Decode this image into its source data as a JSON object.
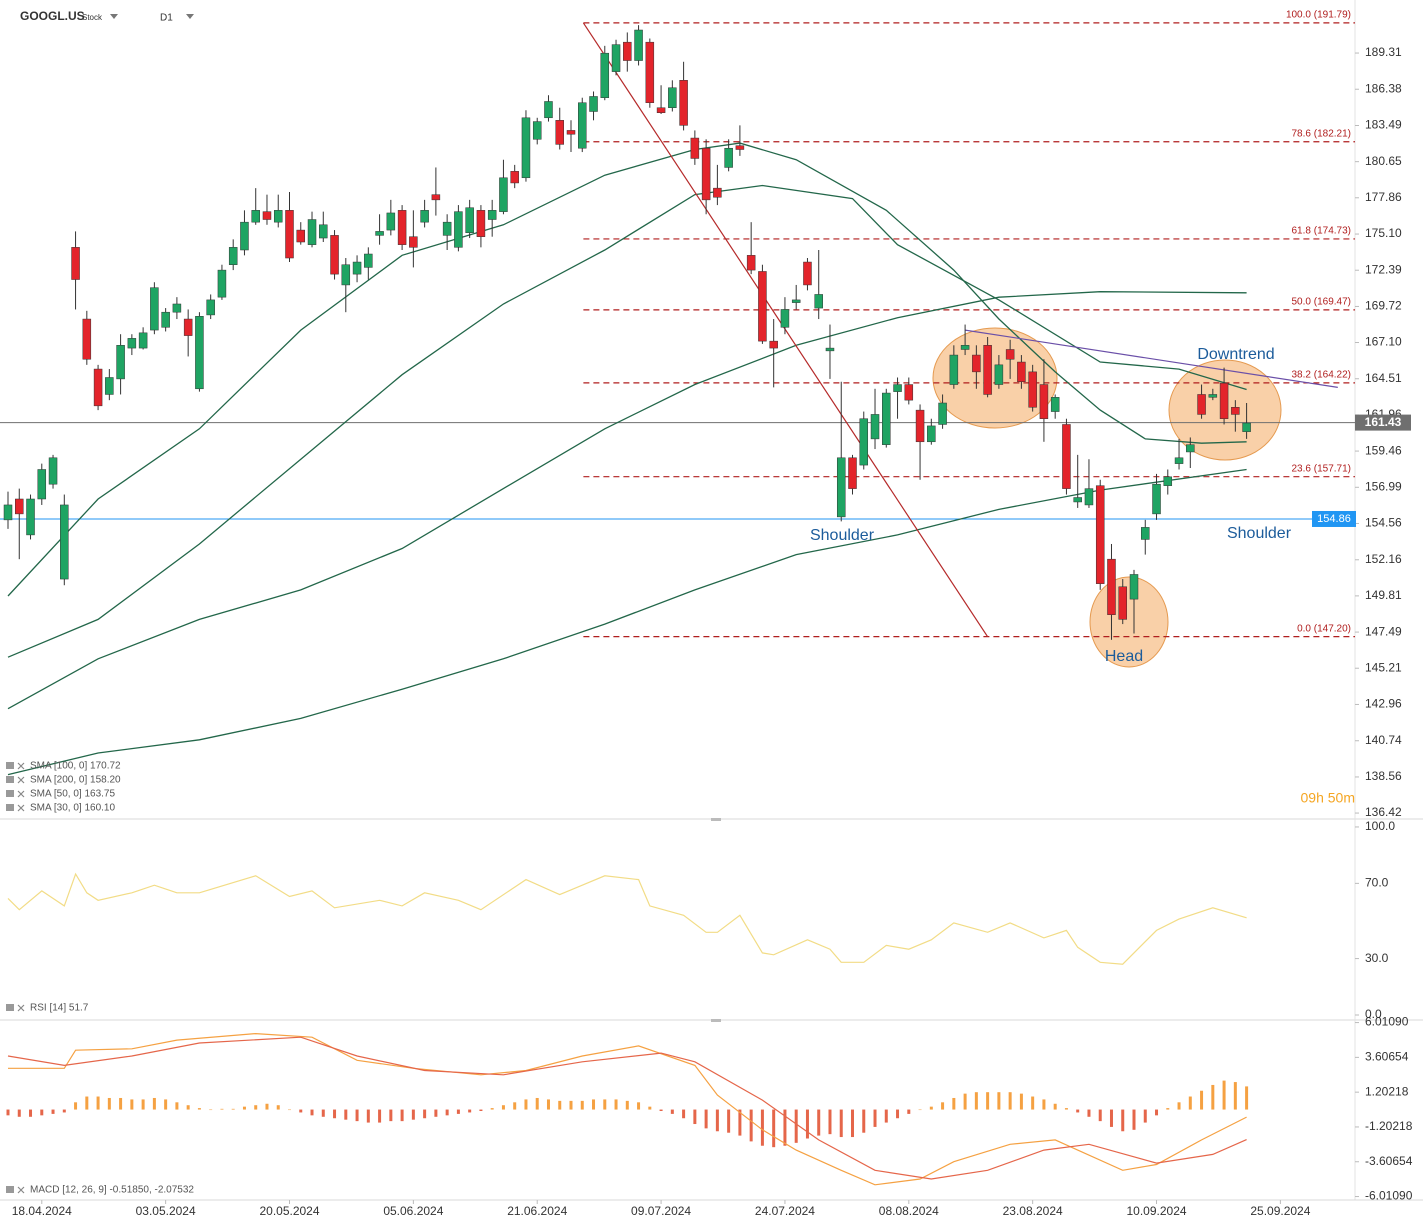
{
  "header": {
    "symbol": "GOOGL.US",
    "instrument_type": "Stock",
    "timeframe": "D1"
  },
  "countdown": "09h 50m",
  "chart_data": [
    {
      "type": "candlestick",
      "log_scale": true,
      "ylim": [
        136.13,
        193.69
      ],
      "yticks": [
        189.31,
        186.38,
        183.49,
        180.65,
        177.86,
        {
          "value": 175.1,
          "label": "175.10"
        },
        172.39,
        169.72,
        {
          "value": 167.1,
          "label": "167.10"
        },
        164.51,
        161.96,
        159.46,
        156.99,
        154.56,
        152.16,
        149.81,
        147.49,
        145.21,
        142.96,
        140.74,
        138.56,
        136.42
      ],
      "xticks": [
        {
          "value": 3,
          "label": "18.04.2024"
        },
        {
          "value": 14,
          "label": "03.05.2024"
        },
        {
          "value": 25,
          "label": "20.05.2024"
        },
        {
          "value": 36,
          "label": "05.06.2024"
        },
        {
          "value": 47,
          "label": "21.06.2024"
        },
        {
          "value": 58,
          "label": "09.07.2024"
        },
        {
          "value": 69,
          "label": "24.07.2024"
        },
        {
          "value": 80,
          "label": "08.08.2024"
        },
        {
          "value": 91,
          "label": "23.08.2024"
        },
        {
          "value": 102,
          "label": "10.09.2024"
        },
        {
          "value": 113,
          "label": "25.09.2024"
        }
      ],
      "up_color": "#1fa463",
      "down_color": "#e3242b",
      "candles": {
        "open": [
          154.8,
          156.2,
          153.8,
          156.2,
          157.2,
          150.9,
          174.1,
          168.8,
          165.2,
          163.4,
          164.5,
          166.7,
          166.7,
          168.0,
          168.2,
          169.3,
          168.8,
          163.8,
          169.1,
          170.4,
          172.8,
          173.9,
          176.0,
          176.8,
          176.0,
          176.9,
          175.4,
          174.3,
          174.8,
          175.0,
          171.3,
          172.1,
          172.6,
          175.0,
          175.4,
          176.9,
          174.9,
          176.0,
          178.1,
          175.0,
          174.1,
          175.2,
          176.9,
          176.2,
          176.8,
          179.9,
          179.4,
          182.4,
          184.1,
          183.9,
          183.1,
          181.7,
          184.6,
          185.7,
          187.8,
          190.2,
          188.7,
          190.2,
          184.9,
          184.9,
          187.1,
          182.5,
          181.7,
          178.6,
          180.2,
          181.9,
          173.5,
          172.3,
          167.2,
          168.2,
          170.0,
          173.0,
          169.6,
          166.5,
          155.0,
          159.0,
          158.5,
          160.3,
          159.9,
          163.6,
          164.1,
          162.3,
          160.1,
          161.3,
          164.1,
          166.6,
          166.2,
          166.9,
          164.1,
          166.6,
          165.7,
          165.0,
          164.1,
          162.2,
          161.3,
          156.0,
          155.8,
          157.1,
          152.2,
          150.4,
          149.6,
          153.5,
          155.2,
          157.1,
          158.6,
          159.4,
          163.4,
          163.2,
          164.2,
          162.5,
          160.8
        ],
        "high": [
          156.7,
          156.9,
          156.5,
          158.6,
          159.2,
          156.5,
          175.3,
          169.4,
          165.5,
          165.2,
          167.7,
          167.7,
          168.2,
          171.5,
          169.6,
          170.4,
          169.5,
          169.3,
          170.6,
          172.8,
          174.7,
          176.9,
          178.6,
          178.1,
          178.1,
          178.3,
          176.0,
          176.8,
          176.8,
          175.4,
          173.3,
          173.5,
          174.1,
          176.6,
          177.7,
          177.3,
          176.9,
          177.7,
          180.2,
          176.6,
          177.3,
          177.7,
          177.3,
          177.7,
          180.8,
          180.4,
          184.7,
          184.1,
          185.9,
          184.9,
          183.9,
          185.7,
          186.2,
          189.9,
          190.4,
          191.0,
          191.6,
          190.5,
          186.7,
          187.1,
          188.6,
          183.1,
          182.4,
          180.4,
          182.4,
          183.5,
          176.0,
          172.8,
          168.8,
          170.4,
          171.3,
          173.3,
          173.9,
          168.4,
          164.3,
          159.2,
          162.2,
          163.8,
          163.8,
          164.6,
          164.6,
          162.7,
          161.7,
          163.4,
          166.9,
          168.4,
          166.9,
          167.5,
          166.2,
          167.3,
          166.2,
          165.5,
          165.9,
          163.4,
          161.7,
          159.2,
          158.9,
          157.5,
          153.2,
          150.9,
          151.5,
          154.8,
          157.9,
          158.2,
          160.3,
          160.4,
          164.1,
          163.8,
          165.3,
          163.0,
          162.8
        ],
        "low": [
          154.2,
          152.2,
          153.5,
          155.8,
          156.9,
          150.5,
          169.5,
          165.5,
          162.3,
          163.0,
          163.4,
          166.2,
          166.6,
          167.7,
          167.9,
          168.8,
          166.1,
          163.6,
          168.8,
          170.2,
          172.4,
          173.5,
          175.8,
          175.8,
          175.6,
          173.0,
          174.3,
          174.1,
          174.5,
          171.7,
          169.3,
          171.5,
          171.7,
          174.3,
          175.0,
          173.9,
          172.6,
          175.6,
          176.5,
          173.9,
          173.8,
          174.8,
          174.1,
          174.9,
          176.6,
          178.6,
          179.1,
          182.0,
          183.8,
          181.6,
          181.4,
          181.4,
          183.9,
          185.5,
          187.5,
          187.8,
          188.3,
          184.9,
          184.4,
          184.6,
          183.1,
          180.4,
          176.6,
          177.3,
          179.9,
          181.1,
          172.1,
          167.0,
          163.9,
          167.7,
          169.5,
          170.9,
          168.8,
          164.5,
          154.7,
          156.5,
          158.2,
          159.6,
          159.7,
          161.7,
          162.7,
          157.5,
          159.9,
          161.0,
          163.8,
          166.2,
          163.8,
          163.2,
          163.8,
          164.5,
          163.8,
          162.2,
          160.1,
          161.7,
          156.5,
          155.6,
          155.6,
          150.2,
          147.0,
          148.0,
          147.4,
          152.5,
          154.8,
          156.5,
          158.2,
          158.3,
          161.7,
          163.0,
          161.3,
          160.8,
          160.3
        ],
        "close": [
          155.8,
          155.2,
          156.2,
          158.2,
          159.0,
          155.8,
          171.7,
          165.9,
          162.6,
          164.6,
          166.9,
          167.4,
          167.8,
          171.1,
          169.3,
          169.9,
          167.6,
          169.0,
          170.2,
          172.4,
          174.1,
          176.0,
          176.9,
          176.2,
          176.9,
          173.3,
          174.5,
          176.2,
          175.8,
          172.1,
          172.8,
          173.0,
          173.6,
          175.3,
          176.7,
          174.3,
          174.1,
          176.9,
          177.7,
          176.0,
          176.8,
          177.1,
          174.9,
          176.9,
          179.4,
          179.0,
          184.1,
          183.8,
          185.4,
          182.0,
          182.8,
          185.3,
          185.8,
          189.3,
          190.0,
          188.7,
          191.2,
          185.3,
          184.5,
          186.5,
          183.5,
          180.9,
          177.7,
          177.9,
          181.7,
          181.6,
          172.4,
          167.2,
          166.7,
          169.5,
          170.2,
          171.3,
          170.6,
          166.7,
          159.0,
          156.9,
          161.7,
          162.0,
          163.5,
          164.1,
          163.0,
          160.1,
          161.2,
          162.8,
          166.2,
          166.9,
          165.0,
          163.4,
          165.5,
          165.9,
          164.3,
          162.5,
          161.7,
          163.2,
          156.9,
          156.3,
          156.9,
          150.6,
          148.6,
          148.3,
          151.2,
          154.3,
          157.2,
          157.7,
          159.0,
          159.9,
          162.0,
          163.4,
          161.7,
          162.0,
          161.4
        ]
      },
      "series": [
        {
          "name": "SMA [100, 0] 170.72",
          "color": "#23674a",
          "x": [
            0,
            8,
            17,
            26,
            35,
            44,
            53,
            61,
            70,
            79,
            88,
            97,
            110
          ],
          "values": [
            142.7,
            145.8,
            148.3,
            150.2,
            152.9,
            156.9,
            161.0,
            164.1,
            166.9,
            168.9,
            170.4,
            170.8,
            170.72
          ]
        },
        {
          "name": "SMA [200, 0] 158.20",
          "color": "#23674a",
          "x": [
            0,
            8,
            17,
            26,
            35,
            44,
            53,
            61,
            70,
            79,
            88,
            97,
            110
          ],
          "values": [
            138.7,
            140.0,
            140.8,
            142.1,
            143.9,
            145.8,
            148.0,
            150.2,
            152.5,
            153.8,
            155.5,
            156.8,
            158.2
          ]
        },
        {
          "name": "SMA [50, 0] 163.75",
          "color": "#23674a",
          "x": [
            0,
            8,
            17,
            26,
            35,
            44,
            53,
            61,
            67,
            75,
            79,
            88,
            97,
            104,
            110
          ],
          "values": [
            145.9,
            148.3,
            153.2,
            158.9,
            164.8,
            169.9,
            173.9,
            178.1,
            178.8,
            177.8,
            174.3,
            170.2,
            165.7,
            165.2,
            163.75
          ]
        },
        {
          "name": "SMA [30, 0] 160.10",
          "color": "#23674a",
          "x": [
            0,
            8,
            17,
            26,
            35,
            44,
            53,
            61,
            65,
            70,
            78,
            84,
            88,
            93,
            97,
            101,
            106,
            110
          ],
          "values": [
            149.8,
            156.2,
            161.0,
            168.0,
            173.5,
            175.8,
            179.6,
            181.6,
            182.1,
            180.8,
            176.9,
            172.4,
            168.8,
            165.0,
            162.3,
            160.3,
            160.0,
            160.1
          ]
        }
      ],
      "fibonacci": [
        {
          "label": "100.0 (191.79)",
          "value": 191.79
        },
        {
          "label": "78.6 (182.21)",
          "value": 182.21
        },
        {
          "label": "61.8 (174.73)",
          "value": 174.73
        },
        {
          "label": "50.0 (169.47)",
          "value": 169.47
        },
        {
          "label": "38.2 (164.22)",
          "value": 164.22
        },
        {
          "label": "23.6 (157.71)",
          "value": 157.71
        },
        {
          "label": "0.0 (147.20)",
          "value": 147.2
        }
      ],
      "fib_color": "#b01e1e",
      "trendlines": [
        {
          "color": "#b52a2a",
          "x": [
            51.1,
            87.0
          ],
          "values": [
            191.79,
            147.2
          ]
        },
        {
          "color": "#6a4fa8",
          "x": [
            85.0,
            118.1
          ],
          "values": [
            168.0,
            163.9
          ]
        }
      ],
      "price_lines": [
        {
          "value": 161.43,
          "color": "#6f6f6f"
        },
        {
          "value": 154.86,
          "color": "#2196f3"
        }
      ],
      "annotations": [
        "Shoulder",
        "Head",
        "Shoulder",
        "Downtrend"
      ]
    },
    {
      "type": "line",
      "ylim": [
        -1.6,
        103.7
      ],
      "yticks": [
        {
          "value": 100,
          "label": "100.0"
        },
        {
          "value": 70,
          "label": "70.0"
        },
        {
          "value": 30,
          "label": "30.0"
        },
        {
          "value": 0,
          "label": "0.0"
        }
      ],
      "series": [
        {
          "name": "RSI [14] 51.7",
          "color": "#f2dc86",
          "x": [
            0,
            1,
            3,
            5,
            6,
            7,
            8,
            11,
            13,
            15,
            17,
            22,
            25,
            27,
            29,
            33,
            35,
            37,
            40,
            42,
            46,
            49,
            53,
            56,
            57,
            60,
            62,
            63,
            65,
            67,
            68,
            71,
            73,
            74,
            76,
            78,
            80,
            82,
            84,
            87,
            89,
            92,
            94,
            95,
            97,
            99,
            102,
            104,
            107,
            110
          ],
          "values": [
            62,
            56,
            66,
            58,
            75,
            65,
            61,
            65,
            69,
            65,
            65,
            74,
            63,
            66,
            57,
            61,
            58,
            65,
            61,
            56,
            72,
            64,
            74,
            72,
            58,
            53,
            44,
            44,
            53,
            33,
            32,
            40,
            35,
            28,
            28,
            37,
            35,
            40,
            49,
            44,
            49,
            41,
            45,
            36,
            28,
            27,
            45,
            51,
            57,
            51.7
          ]
        }
      ]
    },
    {
      "type": "macd",
      "ylim": [
        -6.25,
        6.05
      ],
      "yticks": [
        {
          "value": 6.0109,
          "label": "6.01090"
        },
        3.60654,
        1.20218,
        -1.20218,
        -3.60654,
        {
          "value": -6.0109,
          "label": "-6.01090"
        }
      ],
      "histogram": {
        "up_color": "#f5a142",
        "down_color": "#e5664a",
        "values": [
          -0.4,
          -0.5,
          -0.5,
          -0.4,
          -0.3,
          -0.2,
          0.5,
          0.9,
          0.9,
          0.8,
          0.8,
          0.7,
          0.7,
          0.8,
          0.7,
          0.5,
          0.3,
          0.1,
          0.0,
          0.05,
          0.05,
          0.2,
          0.3,
          0.4,
          0.3,
          0.0,
          -0.2,
          -0.4,
          -0.5,
          -0.6,
          -0.7,
          -0.8,
          -0.9,
          -0.9,
          -0.8,
          -0.8,
          -0.7,
          -0.6,
          -0.5,
          -0.4,
          -0.3,
          -0.2,
          -0.1,
          0.1,
          0.3,
          0.5,
          0.7,
          0.8,
          0.7,
          0.6,
          0.6,
          0.6,
          0.7,
          0.7,
          0.7,
          0.6,
          0.5,
          0.2,
          -0.1,
          -0.3,
          -0.6,
          -1.0,
          -1.3,
          -1.5,
          -1.6,
          -1.8,
          -2.2,
          -2.5,
          -2.6,
          -2.5,
          -2.3,
          -2.0,
          -1.8,
          -1.7,
          -1.9,
          -1.9,
          -1.6,
          -1.2,
          -0.9,
          -0.6,
          -0.3,
          0.0,
          0.2,
          0.5,
          0.8,
          1.1,
          1.2,
          1.2,
          1.2,
          1.2,
          1.1,
          0.9,
          0.7,
          0.4,
          0.1,
          -0.2,
          -0.5,
          -0.8,
          -1.2,
          -1.5,
          -1.4,
          -0.9,
          -0.4,
          0.1,
          0.5,
          0.9,
          1.3,
          1.7,
          2.0,
          1.9,
          1.6
        ]
      },
      "series": [
        {
          "name": "MACD [12, 26, 9] -0.51850, -2.07532",
          "color": "#f5a142",
          "x": [
            0,
            5,
            6,
            11,
            15,
            22,
            27,
            31,
            36,
            42,
            46,
            51,
            56,
            61,
            63,
            67,
            70,
            74,
            77,
            81,
            84,
            89,
            93,
            95,
            99,
            102,
            106,
            110
          ],
          "values": [
            2.85,
            2.85,
            4.1,
            4.2,
            4.8,
            5.25,
            5.0,
            3.4,
            2.85,
            2.4,
            2.7,
            3.7,
            4.4,
            3.05,
            1.0,
            -1.4,
            -2.8,
            -4.2,
            -5.2,
            -4.8,
            -3.6,
            -2.4,
            -2.1,
            -2.8,
            -4.2,
            -3.8,
            -2.1,
            -0.5185
          ]
        },
        {
          "color": "#e5664a",
          "x": [
            0,
            5,
            11,
            17,
            26,
            31,
            37,
            44,
            51,
            58,
            61,
            67,
            72,
            77,
            82,
            87,
            92,
            96,
            102,
            107,
            110
          ],
          "values": [
            3.7,
            3.05,
            3.7,
            4.6,
            5.0,
            3.7,
            2.7,
            2.4,
            3.3,
            3.9,
            3.3,
            0.65,
            -2.1,
            -4.2,
            -4.8,
            -4.2,
            -2.8,
            -2.4,
            -3.7,
            -3.1,
            -2.07532
          ]
        }
      ]
    }
  ]
}
